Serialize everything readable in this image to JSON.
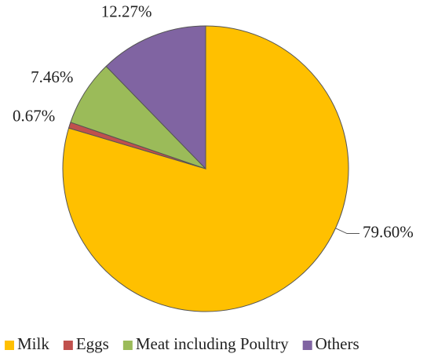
{
  "chart_data": {
    "type": "pie",
    "categories": [
      "Milk",
      "Eggs",
      "Meat including Poultry",
      "Others"
    ],
    "values": [
      79.6,
      0.67,
      7.46,
      12.27
    ],
    "value_labels": [
      "79.60%",
      "0.67%",
      "7.46%",
      "12.27%"
    ],
    "colors": [
      "#FFC000",
      "#C0504D",
      "#9BBB59",
      "#8064A2"
    ],
    "legend": "bottom"
  }
}
